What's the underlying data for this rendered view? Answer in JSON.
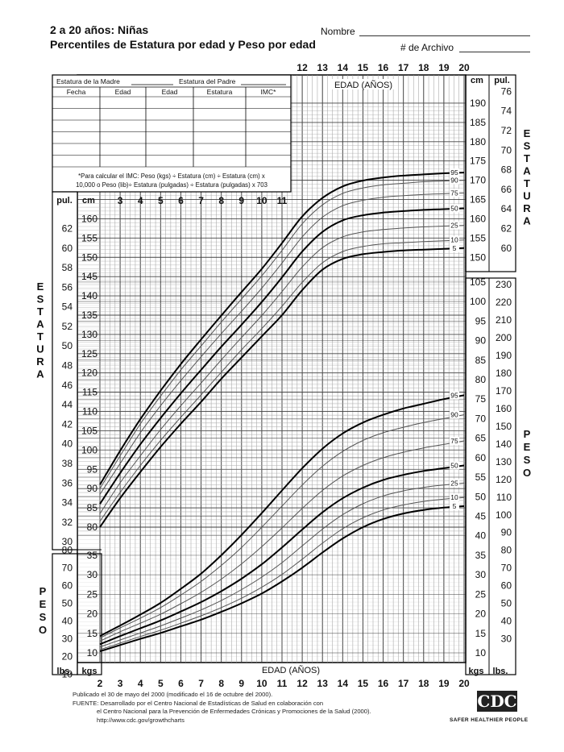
{
  "header": {
    "title_line1": "2 a 20 años: Niñas",
    "title_line2": "Percentiles de Estatura por edad y Peso por edad",
    "name_label": "Nombre",
    "record_label": "# de Archivo"
  },
  "table": {
    "mother_label": "Estatura de la Madre",
    "father_label": "Estatura del Padre",
    "columns": [
      "Fecha",
      "Edad",
      "Edad",
      "Estatura",
      "IMC*"
    ],
    "note_line1": "*Para calcular el IMC: Peso (kgs) ÷ Estatura (cm) ÷ Estatura (cm) x",
    "note_line2": "10,000 o Peso (lib)÷ Estatura (pulgadas) ÷ Estatura (pulgadas) x 703"
  },
  "side_labels": {
    "estatura_left": "ESTATURA",
    "peso_left": "PESO",
    "estatura_right": "ESTATURA",
    "peso_right": "PESO"
  },
  "footer": {
    "line1": "Publicado el 30 de mayo del 2000 (modificado el 16 de octubre del 2000).",
    "line2": "FUENTE:  Desarrollado por el Centro Nacional de Estadísticas de Salud en colaboración con",
    "line3": "el Centro Nacional para la Prevención de Enfermedades Crónicas y Promociones de la Salud (2000).",
    "line4": "http://www.cdc.gov/growthcharts",
    "logo_text": "CDC",
    "tagline": "SAFER HEALTHIER PEOPLE"
  },
  "chart_data": {
    "type": "line",
    "title": "Percentiles de Estatura por edad y Peso por edad",
    "xlabel": "EDAD (AÑOS)",
    "x_ticks": [
      2,
      3,
      4,
      5,
      6,
      7,
      8,
      9,
      10,
      11,
      12,
      13,
      14,
      15,
      16,
      17,
      18,
      19,
      20
    ],
    "xlim": [
      2,
      20
    ],
    "stature": {
      "unit_cm": "cm",
      "unit_in": "pul.",
      "ylim_cm": [
        77.5,
        190
      ],
      "ticks_left_cm": [
        80,
        85,
        90,
        95,
        100,
        105,
        110,
        115,
        120,
        125,
        130,
        135,
        140,
        145,
        150,
        155,
        160
      ],
      "ticks_left_in": [
        30,
        32,
        34,
        36,
        38,
        40,
        42,
        44,
        46,
        48,
        50,
        52,
        54,
        56,
        58,
        60,
        62
      ],
      "ticks_right_cm": [
        150,
        155,
        160,
        165,
        170,
        175,
        180,
        185,
        190
      ],
      "ticks_right_in": [
        60,
        62,
        64,
        66,
        68,
        70,
        72,
        74,
        76
      ],
      "ages": [
        2,
        3,
        4,
        5,
        6,
        7,
        8,
        9,
        10,
        11,
        12,
        13,
        14,
        15,
        16,
        17,
        18,
        19,
        20
      ],
      "series": [
        {
          "name": "5",
          "values": [
            80.0,
            87.5,
            94.3,
            100.8,
            106.8,
            112.5,
            118.5,
            124.0,
            129.5,
            135.0,
            141.5,
            146.8,
            149.6,
            150.8,
            151.4,
            151.8,
            152.0,
            152.2,
            152.4
          ]
        },
        {
          "name": "10",
          "values": [
            81.5,
            89.0,
            96.0,
            102.5,
            108.5,
            114.3,
            120.2,
            126.0,
            131.5,
            137.3,
            143.5,
            148.6,
            151.5,
            152.8,
            153.5,
            153.8,
            154.1,
            154.3,
            154.5
          ]
        },
        {
          "name": "25",
          "values": [
            83.5,
            91.5,
            98.5,
            105.3,
            111.5,
            117.4,
            123.4,
            129.2,
            134.9,
            141.1,
            147.5,
            152.5,
            155.3,
            156.6,
            157.2,
            157.6,
            157.9,
            158.1,
            158.3
          ]
        },
        {
          "name": "50",
          "values": [
            86.0,
            94.0,
            101.5,
            108.3,
            114.7,
            120.8,
            126.8,
            132.5,
            138.4,
            144.8,
            151.5,
            156.6,
            159.6,
            160.9,
            161.6,
            162.0,
            162.3,
            162.5,
            162.7
          ]
        },
        {
          "name": "75",
          "values": [
            88.5,
            96.5,
            104.5,
            111.5,
            118.0,
            124.2,
            130.2,
            136.0,
            142.0,
            148.5,
            155.3,
            160.4,
            163.4,
            164.8,
            165.6,
            166.0,
            166.3,
            166.5,
            166.7
          ]
        },
        {
          "name": "90",
          "values": [
            90.0,
            98.5,
            106.8,
            114.0,
            120.8,
            127.0,
            133.2,
            139.2,
            145.2,
            151.8,
            158.7,
            163.6,
            166.6,
            168.0,
            168.8,
            169.2,
            169.6,
            169.8,
            170.0
          ]
        },
        {
          "name": "95",
          "values": [
            91.0,
            99.8,
            108.0,
            115.4,
            122.3,
            128.7,
            134.9,
            141.0,
            147.0,
            153.7,
            160.6,
            165.4,
            168.4,
            169.9,
            170.7,
            171.2,
            171.5,
            171.8,
            172.0
          ]
        }
      ]
    },
    "weight": {
      "unit_kg": "kgs",
      "unit_lb": "lbs.",
      "ylim_kg": [
        8,
        108
      ],
      "ticks_left_kg": [
        10,
        15,
        20,
        25,
        30,
        35
      ],
      "ticks_left_lb": [
        10,
        20,
        30,
        40,
        50,
        60,
        70,
        80
      ],
      "ticks_right_kg": [
        10,
        15,
        20,
        25,
        30,
        35,
        40,
        45,
        50,
        55,
        60,
        65,
        70,
        75,
        80,
        85,
        90,
        95,
        100,
        105
      ],
      "ticks_right_lb": [
        30,
        40,
        50,
        60,
        70,
        80,
        90,
        100,
        110,
        120,
        130,
        140,
        150,
        160,
        170,
        180,
        190,
        200,
        210,
        220,
        230
      ],
      "ages": [
        2,
        3,
        4,
        5,
        6,
        7,
        8,
        9,
        10,
        11,
        12,
        13,
        14,
        15,
        16,
        17,
        18,
        19,
        20
      ],
      "series": [
        {
          "name": "5",
          "values": [
            10.4,
            12.0,
            13.6,
            15.1,
            16.8,
            18.5,
            20.5,
            22.7,
            25.2,
            28.3,
            31.8,
            35.7,
            39.3,
            42.2,
            44.3,
            45.7,
            46.6,
            47.2,
            47.6
          ]
        },
        {
          "name": "10",
          "values": [
            10.8,
            12.5,
            14.2,
            15.8,
            17.6,
            19.5,
            21.6,
            24.0,
            26.8,
            30.1,
            34.0,
            38.1,
            41.8,
            44.6,
            46.6,
            47.9,
            48.8,
            49.4,
            49.8
          ]
        },
        {
          "name": "25",
          "values": [
            11.5,
            13.3,
            15.1,
            16.9,
            18.9,
            21.0,
            23.4,
            26.2,
            29.4,
            33.1,
            37.4,
            41.7,
            45.4,
            48.2,
            50.2,
            51.5,
            52.4,
            53.0,
            53.5
          ]
        },
        {
          "name": "50",
          "values": [
            12.2,
            14.3,
            16.3,
            18.3,
            20.6,
            23.0,
            25.8,
            29.0,
            32.7,
            37.0,
            41.6,
            46.0,
            49.6,
            52.3,
            54.3,
            55.6,
            56.6,
            57.3,
            58.0
          ]
        },
        {
          "name": "75",
          "values": [
            13.0,
            15.4,
            17.6,
            19.9,
            22.6,
            25.5,
            28.9,
            32.8,
            37.2,
            42.0,
            47.0,
            51.6,
            55.3,
            58.0,
            60.0,
            61.4,
            62.5,
            63.4,
            64.3
          ]
        },
        {
          "name": "90",
          "values": [
            13.8,
            16.4,
            18.9,
            21.6,
            24.8,
            28.3,
            32.4,
            37.0,
            42.2,
            47.6,
            53.0,
            57.8,
            61.6,
            64.4,
            66.4,
            67.8,
            69.0,
            70.0,
            71.0
          ]
        },
        {
          "name": "95",
          "values": [
            14.3,
            17.0,
            19.8,
            22.8,
            26.4,
            30.3,
            35.0,
            40.2,
            45.8,
            51.6,
            57.3,
            62.3,
            66.2,
            69.0,
            71.0,
            72.6,
            73.8,
            75.0,
            76.0
          ]
        }
      ]
    }
  }
}
